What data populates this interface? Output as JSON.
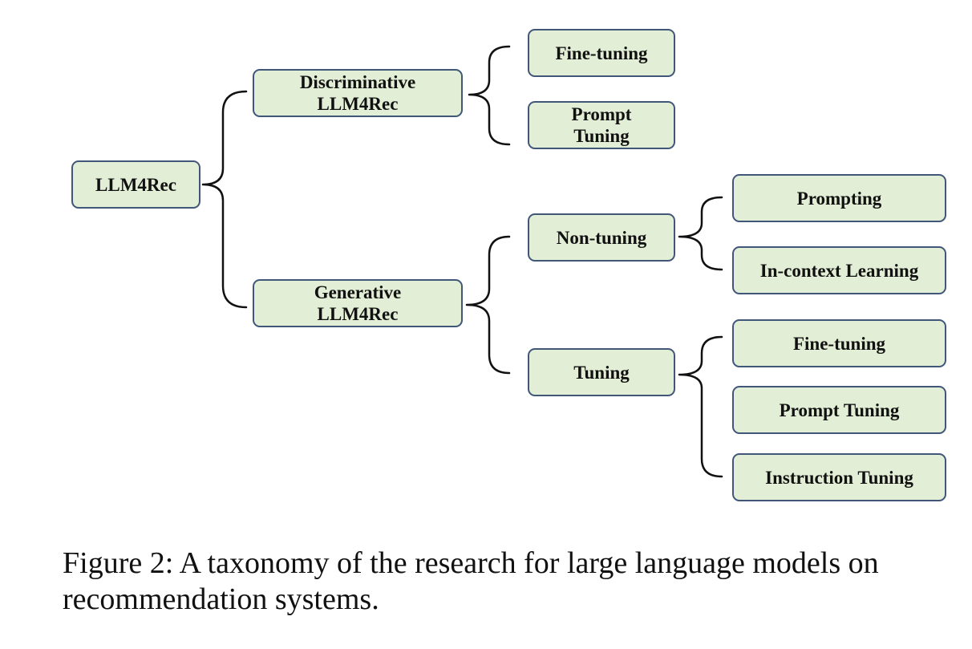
{
  "colors": {
    "node_fill": "#e2eed5",
    "node_border": "#41577a",
    "connector": "#111111",
    "text": "#111111"
  },
  "nodes": {
    "root": "LLM4Rec",
    "discriminative": "Discriminative\nLLM4Rec",
    "generative": "Generative\nLLM4Rec",
    "disc_finetuning": "Fine-tuning",
    "disc_prompt_tuning": "Prompt\nTuning",
    "non_tuning": "Non-tuning",
    "tuning": "Tuning",
    "prompting": "Prompting",
    "in_context_learning": "In-context Learning",
    "gen_finetuning": "Fine-tuning",
    "gen_prompt_tuning": "Prompt Tuning",
    "instruction_tuning": "Instruction Tuning"
  },
  "caption": "Figure 2: A taxonomy of the research for large language models on recommendation systems."
}
